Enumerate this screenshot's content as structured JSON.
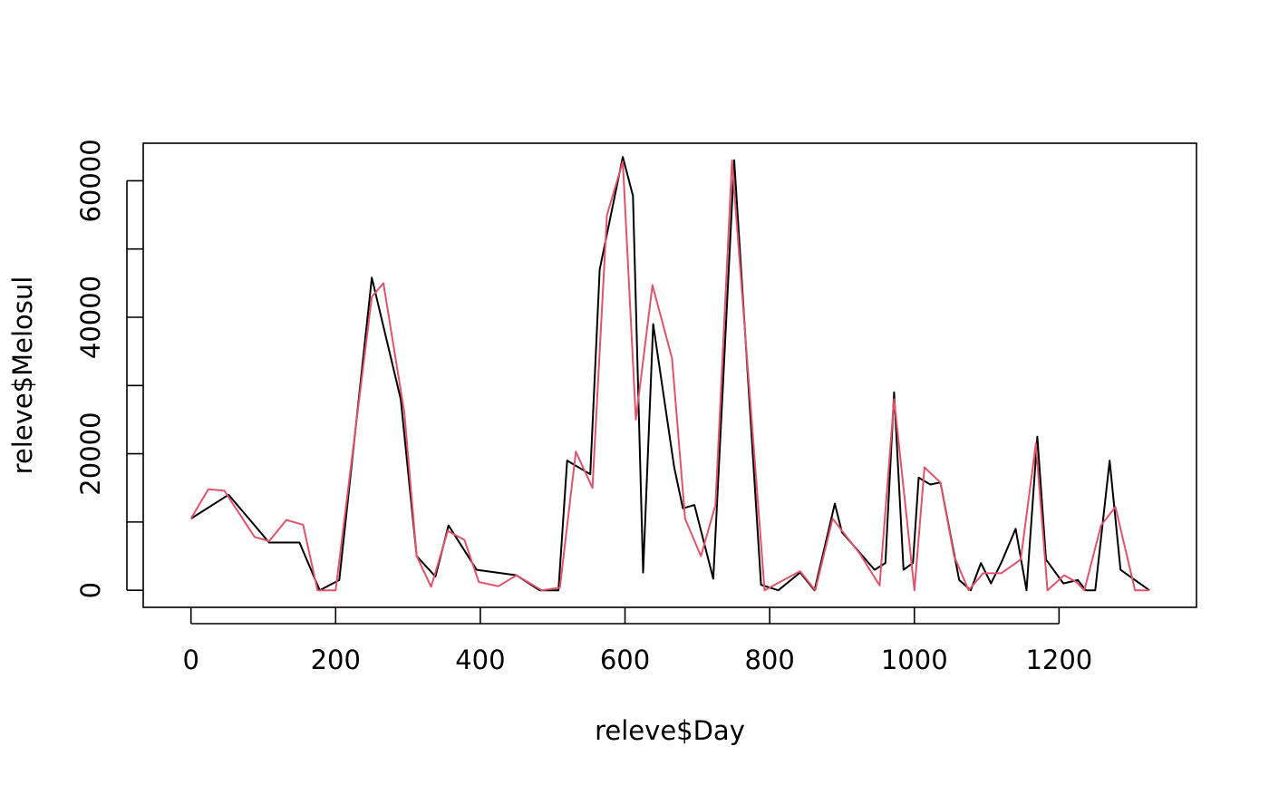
{
  "chart_data": {
    "type": "line",
    "title": "",
    "xlabel": "releve$Day",
    "ylabel": "releve$Melosul",
    "xlim": [
      -66,
      1390
    ],
    "ylim": [
      -2500,
      65500
    ],
    "x_ticks": [
      0,
      200,
      400,
      600,
      800,
      1000,
      1200
    ],
    "x_tick_labels": [
      "0",
      "200",
      "400",
      "600",
      "800",
      "1000",
      "1200"
    ],
    "y_ticks": [
      0,
      10000,
      20000,
      30000,
      40000,
      50000,
      60000
    ],
    "y_tick_labels": [
      "0",
      "",
      "20000",
      "",
      "40000",
      "",
      "60000"
    ],
    "grid": false,
    "legend": "none",
    "series": [
      {
        "color": "#000000",
        "points": [
          [
            0,
            10500
          ],
          [
            52,
            14000
          ],
          [
            108,
            7000
          ],
          [
            150,
            7000
          ],
          [
            178,
            0
          ],
          [
            205,
            1500
          ],
          [
            250,
            45800
          ],
          [
            290,
            28000
          ],
          [
            312,
            5000
          ],
          [
            338,
            2000
          ],
          [
            356,
            9500
          ],
          [
            395,
            3000
          ],
          [
            450,
            2200
          ],
          [
            482,
            0
          ],
          [
            508,
            0
          ],
          [
            520,
            19000
          ],
          [
            552,
            17000
          ],
          [
            565,
            47000
          ],
          [
            597,
            63500
          ],
          [
            611,
            57800
          ],
          [
            625,
            2600
          ],
          [
            639,
            39000
          ],
          [
            668,
            18000
          ],
          [
            680,
            12000
          ],
          [
            696,
            12500
          ],
          [
            722,
            1700
          ],
          [
            751,
            63000
          ],
          [
            788,
            800
          ],
          [
            812,
            0
          ],
          [
            842,
            2600
          ],
          [
            862,
            0
          ],
          [
            890,
            12700
          ],
          [
            900,
            8500
          ],
          [
            945,
            3000
          ],
          [
            960,
            4000
          ],
          [
            972,
            29000
          ],
          [
            985,
            3000
          ],
          [
            998,
            4000
          ],
          [
            1006,
            16500
          ],
          [
            1022,
            15500
          ],
          [
            1036,
            15800
          ],
          [
            1062,
            1500
          ],
          [
            1078,
            0
          ],
          [
            1092,
            4000
          ],
          [
            1106,
            1000
          ],
          [
            1120,
            4000
          ],
          [
            1140,
            9000
          ],
          [
            1155,
            0
          ],
          [
            1170,
            22500
          ],
          [
            1182,
            4500
          ],
          [
            1206,
            1000
          ],
          [
            1226,
            1500
          ],
          [
            1237,
            0
          ],
          [
            1250,
            0
          ],
          [
            1270,
            19000
          ],
          [
            1285,
            3000
          ],
          [
            1325,
            0
          ]
        ]
      },
      {
        "color": "#df536b",
        "points": [
          [
            0,
            10500
          ],
          [
            24,
            14800
          ],
          [
            46,
            14600
          ],
          [
            88,
            7800
          ],
          [
            108,
            7200
          ],
          [
            132,
            10300
          ],
          [
            155,
            9600
          ],
          [
            175,
            0
          ],
          [
            200,
            0
          ],
          [
            250,
            43000
          ],
          [
            266,
            45000
          ],
          [
            295,
            26000
          ],
          [
            312,
            5000
          ],
          [
            332,
            500
          ],
          [
            355,
            8700
          ],
          [
            378,
            7400
          ],
          [
            398,
            1200
          ],
          [
            425,
            600
          ],
          [
            450,
            2200
          ],
          [
            485,
            0
          ],
          [
            510,
            400
          ],
          [
            532,
            20300
          ],
          [
            555,
            15000
          ],
          [
            575,
            55000
          ],
          [
            597,
            62800
          ],
          [
            615,
            25000
          ],
          [
            638,
            44700
          ],
          [
            665,
            34000
          ],
          [
            683,
            10500
          ],
          [
            705,
            5000
          ],
          [
            725,
            12500
          ],
          [
            748,
            63000
          ],
          [
            793,
            0
          ],
          [
            842,
            2800
          ],
          [
            863,
            0
          ],
          [
            887,
            10500
          ],
          [
            925,
            5300
          ],
          [
            952,
            700
          ],
          [
            972,
            28000
          ],
          [
            1000,
            0
          ],
          [
            1014,
            18000
          ],
          [
            1036,
            15800
          ],
          [
            1055,
            5000
          ],
          [
            1075,
            0
          ],
          [
            1095,
            2500
          ],
          [
            1120,
            2500
          ],
          [
            1147,
            4500
          ],
          [
            1168,
            21500
          ],
          [
            1184,
            0
          ],
          [
            1207,
            2200
          ],
          [
            1224,
            1200
          ],
          [
            1235,
            0
          ],
          [
            1258,
            9500
          ],
          [
            1278,
            12200
          ],
          [
            1305,
            0
          ],
          [
            1325,
            0
          ]
        ]
      }
    ]
  }
}
